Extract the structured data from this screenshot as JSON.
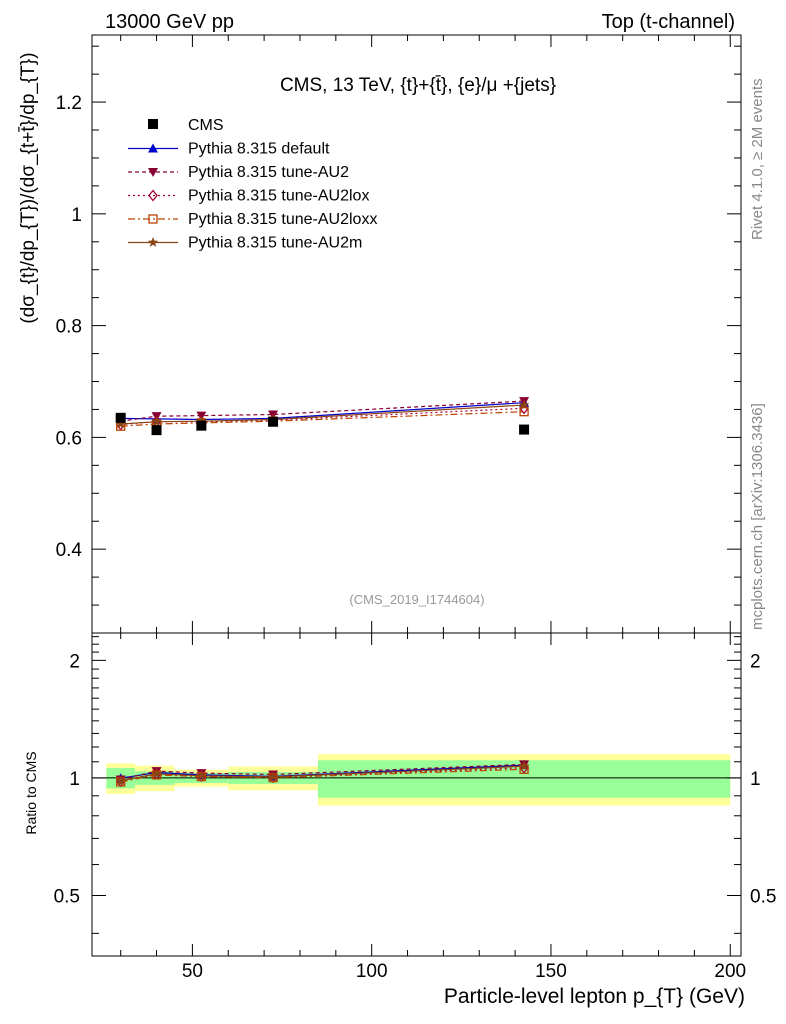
{
  "header": {
    "left": "13000 GeV pp",
    "right": "Top (t-channel)"
  },
  "side": {
    "rivet": "Rivet 4.1.0, ≥ 2M events",
    "mcplots": "mcplots.cern.ch [arXiv:1306.3436]"
  },
  "chart_data": {
    "type": "line",
    "title": "CMS, 13 TeV, {t}+{t̄}, {e}/μ +{jets}",
    "watermark": "(CMS_2019_I1744604)",
    "xlabel": "Particle-level lepton p_{T} (GeV)",
    "ylabel": "(dσ_{t}/dp_{T})/(dσ_{t+t̄}/dp_{T})",
    "ratio_ylabel": "Ratio to CMS",
    "xlim": [
      22,
      203
    ],
    "ylim": [
      0.25,
      1.32
    ],
    "ratio_ylim": [
      0.35,
      2.35
    ],
    "x_ticks": [
      50,
      100,
      150,
      200
    ],
    "y_ticks": [
      0.4,
      0.6,
      0.8,
      1,
      1.2
    ],
    "ratio_ticks": [
      0.5,
      1,
      2
    ],
    "bins": [
      [
        26,
        34
      ],
      [
        34,
        45
      ],
      [
        45,
        60
      ],
      [
        60,
        85
      ],
      [
        85,
        200
      ]
    ],
    "x": [
      30,
      40,
      52.5,
      72.5,
      142.5
    ],
    "data": {
      "name": "CMS",
      "values": [
        0.635,
        0.613,
        0.621,
        0.628,
        0.614
      ],
      "band_inner": [
        0.06,
        0.04,
        0.03,
        0.035,
        0.11
      ],
      "band_outer": [
        0.09,
        0.075,
        0.05,
        0.07,
        0.15
      ]
    },
    "series": [
      {
        "name": "Pythia 8.315 default",
        "color": "#0000cc",
        "dash": "",
        "marker": "triangle-up",
        "values": [
          0.634,
          0.633,
          0.632,
          0.634,
          0.662
        ]
      },
      {
        "name": "Pythia 8.315 tune-AU2",
        "color": "#880033",
        "dash": "4,3",
        "marker": "triangle-down",
        "values": [
          0.629,
          0.638,
          0.639,
          0.641,
          0.665
        ]
      },
      {
        "name": "Pythia 8.315 tune-AU2lox",
        "color": "#aa0033",
        "dash": "2,3",
        "marker": "diamond",
        "values": [
          0.623,
          0.628,
          0.628,
          0.631,
          0.652
        ]
      },
      {
        "name": "Pythia 8.315 tune-AU2loxx",
        "color": "#bb4400",
        "dash": "7,3,2,3",
        "marker": "square-open",
        "values": [
          0.62,
          0.624,
          0.626,
          0.629,
          0.646
        ]
      },
      {
        "name": "Pythia 8.315 tune-AU2m",
        "color": "#8b4513",
        "dash": "",
        "marker": "star",
        "values": [
          0.624,
          0.628,
          0.629,
          0.632,
          0.658
        ]
      }
    ],
    "ratio_colors": {
      "inner": "#99ff99",
      "outer": "#ffff99"
    }
  }
}
